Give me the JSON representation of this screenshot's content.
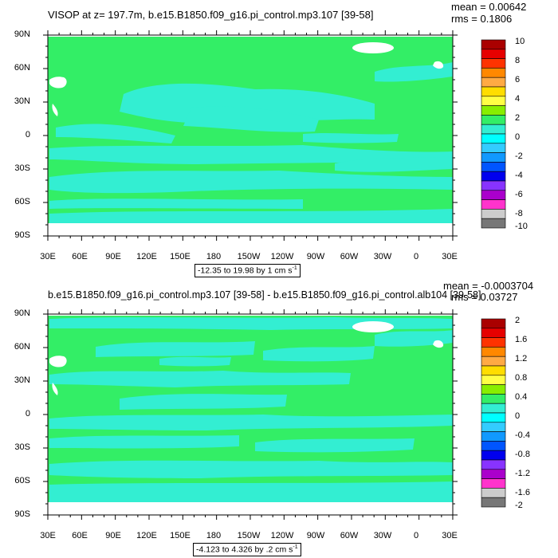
{
  "panels": [
    {
      "title": "VISOP at z= 197.7m, b.e15.B1850.f09_g16.pi_control.mp3.107 [39-58]",
      "mean": "mean = 0.00642",
      "rms": "rms = 0.1806",
      "range_text": "-12.35 to 19.98 by 1 cm s",
      "range_exp": "-1",
      "lat_labels": [
        "90N",
        "60N",
        "30N",
        "0",
        "30S",
        "60S",
        "90S"
      ],
      "lon_labels": [
        "30E",
        "60E",
        "90E",
        "120E",
        "150E",
        "180",
        "150W",
        "120W",
        "90W",
        "60W",
        "30W",
        "0",
        "30E"
      ],
      "colorbar_labels": [
        "10",
        "8",
        "6",
        "4",
        "2",
        "0",
        "-2",
        "-4",
        "-6",
        "-8",
        "-10"
      ]
    },
    {
      "title": "b.e15.B1850.f09_g16.pi_control.mp3.107 [39-58] - b.e15.B1850.f09_g16.pi_control.alb104 [39-58]",
      "mean": "mean = -0.0003704",
      "rms": "rms = 0.03727",
      "range_text": "-4.123 to 4.326 by .2 cm s",
      "range_exp": "-1",
      "lat_labels": [
        "90N",
        "60N",
        "30N",
        "0",
        "30S",
        "60S",
        "90S"
      ],
      "lon_labels": [
        "30E",
        "60E",
        "90E",
        "120E",
        "150E",
        "180",
        "150W",
        "120W",
        "90W",
        "60W",
        "30W",
        "0",
        "30E"
      ],
      "colorbar_labels": [
        "2",
        "1.6",
        "1.2",
        "0.8",
        "0.4",
        "0",
        "-0.4",
        "-0.8",
        "-1.2",
        "-1.6",
        "-2"
      ]
    }
  ],
  "colors": {
    "field_green": "#33ee66",
    "field_cyan": "#33eed2",
    "land_white": "#ffffff",
    "colorbar": [
      "#aa0000",
      "#e60000",
      "#ff3300",
      "#ff8800",
      "#ffaa44",
      "#ffdd00",
      "#ffff44",
      "#88ee00",
      "#33ee66",
      "#33eed2",
      "#00ffff",
      "#33ccff",
      "#1199ff",
      "#0055ff",
      "#0000ee",
      "#8833ff",
      "#aa00cc",
      "#ff33cc",
      "#cccccc",
      "#777777"
    ]
  }
}
